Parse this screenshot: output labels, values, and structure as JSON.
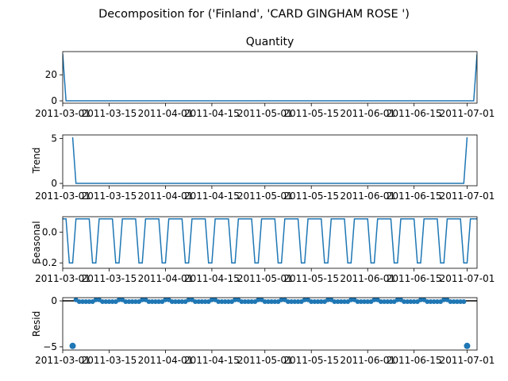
{
  "figure": {
    "suptitle": "Decomposition for ('Finland', 'CARD GINGHAM ROSE ')"
  },
  "chart_data": [
    {
      "type": "line",
      "panel": "observed",
      "title": "Quantity",
      "ylabel": "",
      "x_start": "2011-03-01",
      "x_end": "2011-07-04",
      "ylim": [
        -1.8,
        37.8
      ],
      "yticks": [
        {
          "v": 0,
          "label": "0"
        },
        {
          "v": 20,
          "label": "20"
        }
      ],
      "xticks": [
        "2011-03-01",
        "2011-03-15",
        "2011-04-01",
        "2011-04-15",
        "2011-05-01",
        "2011-05-15",
        "2011-06-01",
        "2011-06-15",
        "2011-07-01"
      ],
      "points": [
        [
          "2011-03-01",
          36
        ],
        [
          "2011-03-02",
          0
        ],
        [
          "2011-07-03",
          0
        ],
        [
          "2011-07-04",
          36
        ]
      ],
      "color": "#1f77b4"
    },
    {
      "type": "line",
      "panel": "trend",
      "title": "",
      "ylabel": "Trend",
      "x_start": "2011-03-01",
      "x_end": "2011-07-04",
      "ylim": [
        -0.26,
        5.4
      ],
      "yticks": [
        {
          "v": 0,
          "label": "0"
        },
        {
          "v": 5,
          "label": "5"
        }
      ],
      "xticks": [
        "2011-03-01",
        "2011-03-15",
        "2011-04-01",
        "2011-04-15",
        "2011-05-01",
        "2011-05-15",
        "2011-06-01",
        "2011-06-15",
        "2011-07-01"
      ],
      "points": [
        [
          "2011-03-04",
          5.14
        ],
        [
          "2011-03-05",
          0
        ],
        [
          "2011-06-30",
          0
        ],
        [
          "2011-07-01",
          5.14
        ]
      ],
      "color": "#1f77b4"
    },
    {
      "type": "line",
      "panel": "seasonal",
      "title": "",
      "ylabel": "Seasonal",
      "x_start": "2011-03-01",
      "x_end": "2011-07-04",
      "ylim": [
        -0.235,
        0.1
      ],
      "yticks": [
        {
          "v": 0,
          "label": "0.0"
        },
        {
          "v": -0.2,
          "label": "−0.2"
        }
      ],
      "xticks": [
        "2011-03-01",
        "2011-03-15",
        "2011-04-01",
        "2011-04-15",
        "2011-05-01",
        "2011-05-15",
        "2011-06-01",
        "2011-06-15",
        "2011-07-01"
      ],
      "period": 7,
      "first_date": "2011-03-01",
      "weekly_pattern": [
        0.0857,
        0.0857,
        -0.2,
        -0.2,
        0.0857,
        0.0857,
        0.0857
      ],
      "color": "#1f77b4"
    },
    {
      "type": "scatter",
      "panel": "resid",
      "title": "",
      "ylabel": "Resid",
      "x_start": "2011-03-01",
      "x_end": "2011-07-04",
      "ylim": [
        -5.35,
        0.35
      ],
      "yticks": [
        {
          "v": 0,
          "label": "0"
        },
        {
          "v": -5,
          "label": "−5"
        }
      ],
      "xticks": [
        "2011-03-01",
        "2011-03-15",
        "2011-04-01",
        "2011-04-15",
        "2011-05-01",
        "2011-05-15",
        "2011-06-01",
        "2011-06-15",
        "2011-07-01"
      ],
      "baseline": 0,
      "first_date": "2011-03-04",
      "last_date": "2011-07-01",
      "period": 7,
      "weekly_pattern": [
        0.1143,
        0.1143,
        -0.0857,
        -0.0857,
        -0.0857,
        -0.0857,
        -0.0857
      ],
      "outliers": [
        [
          "2011-03-04",
          -4.9
        ],
        [
          "2011-07-01",
          -4.9
        ]
      ],
      "color": "#1f77b4"
    }
  ]
}
